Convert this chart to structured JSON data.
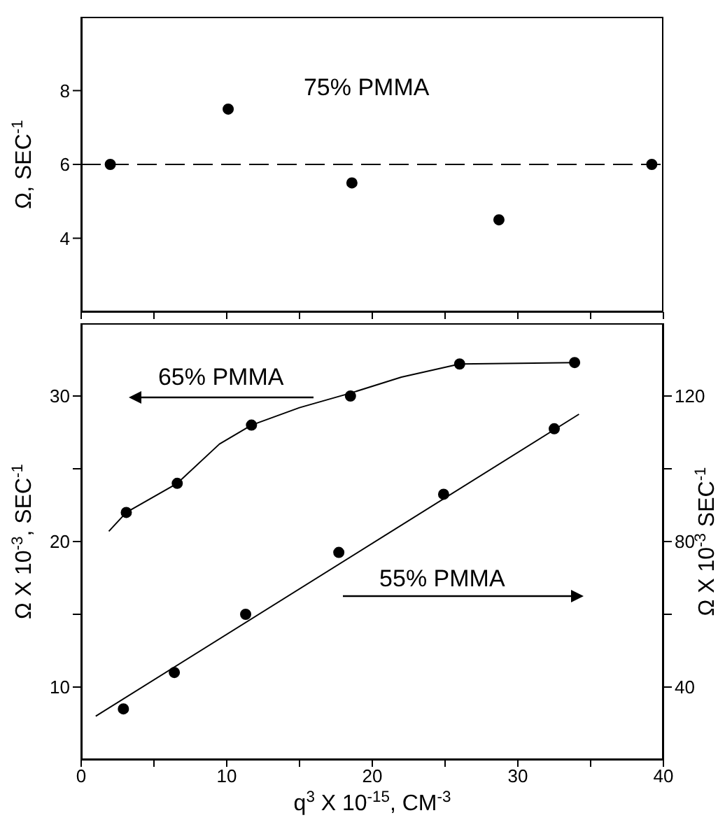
{
  "chart_data": [
    {
      "type": "scatter",
      "ylabel": "Ω, SEC$^{-1}$",
      "x": [
        2,
        10.1,
        18.6,
        28.7,
        39.2
      ],
      "values": [
        6,
        7.5,
        5.5,
        4.5,
        6
      ],
      "color": "#000000",
      "marker": "circle",
      "xlim": [
        0,
        40
      ],
      "xticks": [
        0,
        5,
        10,
        15,
        20,
        25,
        30,
        35,
        40
      ],
      "ylim": [
        2,
        10
      ],
      "yticks": [
        4,
        6,
        8
      ],
      "tick_labels": "y",
      "ref_lines": [
        {
          "axis": "y",
          "value": 6,
          "line_style": "dashed",
          "color": "#000000"
        }
      ],
      "annotations": [
        "75% PMMA"
      ]
    },
    {
      "type": "scatter",
      "xlabel": "q$^{3}$ X 10$^{-15}$, CM$^{-3}$",
      "ylabel": "Ω X 10$^{-3}$, SEC$^{-1}$",
      "y2label": "Ω X 10$^{-3}$ SEC$^{-1}$",
      "marker": "circle",
      "xlim": [
        0,
        40
      ],
      "xticks": [
        0,
        {
          "value": 5,
          "label": null
        },
        10,
        {
          "value": 15,
          "label": null
        },
        20,
        {
          "value": 25,
          "label": null
        },
        30,
        {
          "value": 35,
          "label": null
        },
        40
      ],
      "ylim": [
        5,
        35
      ],
      "yticks": [
        10,
        {
          "value": 15,
          "label": null
        },
        20,
        {
          "value": 25,
          "label": null
        },
        30
      ],
      "y2lim": [
        20,
        140
      ],
      "y2ticks": [
        40,
        {
          "value": 60,
          "label": null
        },
        80,
        {
          "value": 100,
          "label": null
        },
        120
      ],
      "series": [
        {
          "type": "scatter",
          "color": "#000000",
          "x": [
            3.1,
            6.6,
            11.7,
            18.5,
            26,
            33.9
          ],
          "values": [
            22,
            24,
            28,
            30,
            32.2,
            32.3
          ]
        },
        {
          "type": "line",
          "color": "#000000",
          "marker": "none",
          "x": [
            1.9,
            3.1,
            6.6,
            9.5,
            11.7,
            15,
            18.5,
            22,
            26,
            33.9
          ],
          "values": [
            20.7,
            22,
            24,
            26.7,
            28,
            29.2,
            30.2,
            31.3,
            32.2,
            32.3
          ]
        },
        {
          "type": "scatter",
          "axis": "y2",
          "color": "#000000",
          "x": [
            2.9,
            6.4,
            11.3,
            17.7,
            24.9,
            32.5
          ],
          "values": [
            34,
            44,
            60,
            77,
            93,
            111
          ]
        },
        {
          "type": "line",
          "axis": "y2",
          "color": "#000000",
          "marker": "none",
          "x": [
            1,
            34.2
          ],
          "values": [
            32,
            115
          ]
        }
      ],
      "annotations": [
        "65% PMMA",
        "55% PMMA"
      ]
    }
  ]
}
